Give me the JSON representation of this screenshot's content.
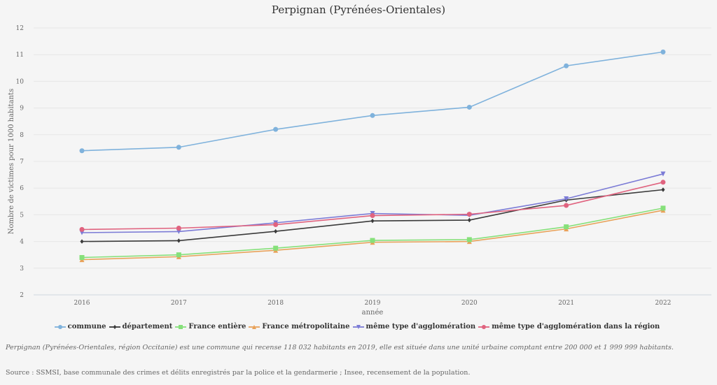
{
  "chart_data": {
    "type": "line",
    "title": "Perpignan (Pyrénées-Orientales)",
    "xlabel": "année",
    "ylabel": "Nombre de victimes pour 1000 habitants",
    "x": [
      "2016",
      "2017",
      "2018",
      "2019",
      "2020",
      "2021",
      "2022"
    ],
    "ylim": [
      2,
      12
    ],
    "yticks": [
      "2",
      "3",
      "4",
      "5",
      "6",
      "7",
      "8",
      "9",
      "10",
      "11",
      "12"
    ],
    "grid": true,
    "legend_position": "bottom",
    "series": [
      {
        "name": "commune",
        "color": "#7fb2dc",
        "marker": "circle",
        "values": [
          7.4,
          7.53,
          8.2,
          8.72,
          9.03,
          10.58,
          11.1
        ]
      },
      {
        "name": "département",
        "color": "#3a3a3a",
        "marker": "diamond",
        "values": [
          4.0,
          4.03,
          4.38,
          4.77,
          4.8,
          5.55,
          5.94
        ]
      },
      {
        "name": "France entière",
        "color": "#86e07a",
        "marker": "square",
        "values": [
          3.4,
          3.5,
          3.75,
          4.04,
          4.07,
          4.55,
          5.25
        ]
      },
      {
        "name": "France métropolitaine",
        "color": "#e8a25a",
        "marker": "triangle-up",
        "values": [
          3.32,
          3.43,
          3.67,
          3.97,
          4.0,
          4.47,
          5.17
        ]
      },
      {
        "name": "même type d'agglomération",
        "color": "#7b7bd6",
        "marker": "triangle-down",
        "values": [
          4.33,
          4.37,
          4.7,
          5.05,
          4.98,
          5.6,
          6.53
        ]
      },
      {
        "name": "même type d'agglomération dans la région",
        "color": "#e0637f",
        "marker": "circle",
        "values": [
          4.45,
          4.5,
          4.63,
          4.97,
          5.02,
          5.35,
          6.22
        ]
      }
    ]
  },
  "footer": {
    "note": "Perpignan (Pyrénées-Orientales, région Occitanie) est une commune qui recense 118 032 habitants en 2019, elle est située dans une unité urbaine comptant entre 200 000 et 1 999 999 habitants.",
    "source": "Source : SSMSI, base communale des crimes et délits enregistrés par la police et la gendarmerie ; Insee, recensement de la population."
  }
}
